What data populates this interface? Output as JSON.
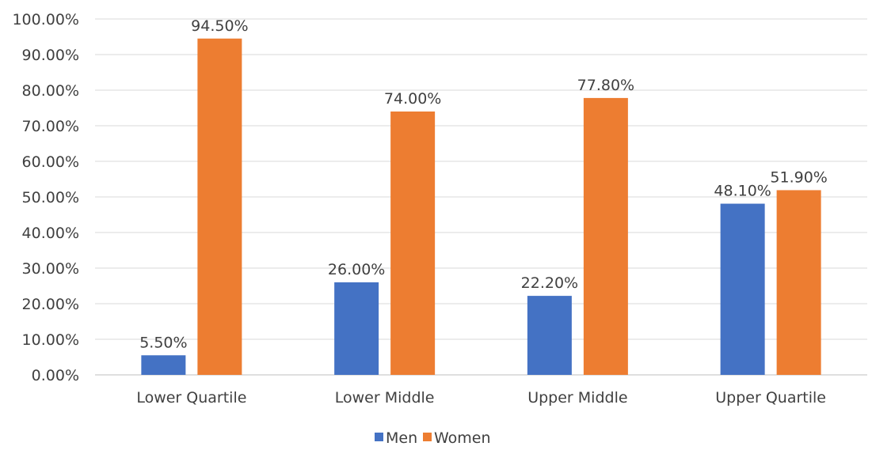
{
  "chart_data": {
    "type": "bar",
    "categories": [
      "Lower Quartile",
      "Lower Middle",
      "Upper Middle",
      "Upper Quartile"
    ],
    "series": [
      {
        "name": "Men",
        "values": [
          5.5,
          26.0,
          22.2,
          48.1
        ],
        "color": "#4472C4"
      },
      {
        "name": "Women",
        "values": [
          94.5,
          74.0,
          77.8,
          51.9
        ],
        "color": "#ED7D31"
      }
    ],
    "data_labels": [
      [
        "5.50%",
        "26.00%",
        "22.20%",
        "48.10%"
      ],
      [
        "94.50%",
        "74.00%",
        "77.80%",
        "51.90%"
      ]
    ],
    "ylim": [
      0,
      100
    ],
    "ytick_labels": [
      "0.00%",
      "10.00%",
      "20.00%",
      "30.00%",
      "40.00%",
      "50.00%",
      "60.00%",
      "70.00%",
      "80.00%",
      "90.00%",
      "100.00%"
    ],
    "grid": true,
    "legend_position": "bottom"
  }
}
